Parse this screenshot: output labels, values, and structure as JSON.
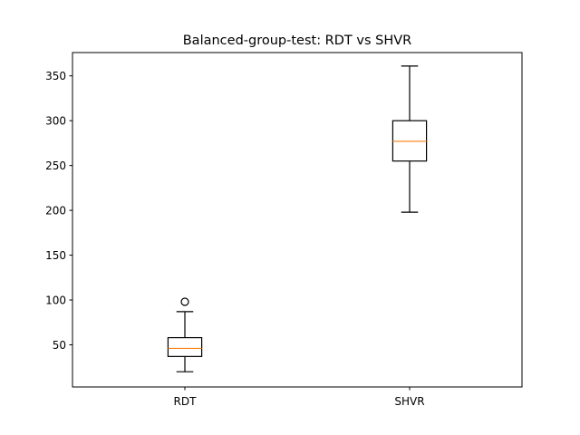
{
  "chart_data": {
    "type": "box",
    "title": "Balanced-group-test: RDT vs SHVR",
    "xlabel": "",
    "ylabel": "",
    "categories": [
      "RDT",
      "SHVR"
    ],
    "boxes": [
      {
        "label": "RDT",
        "whisker_low": 20,
        "q1": 37,
        "median": 46,
        "q3": 58,
        "whisker_high": 87,
        "outliers": [
          98
        ]
      },
      {
        "label": "SHVR",
        "whisker_low": 198,
        "q1": 255,
        "median": 277,
        "q3": 300,
        "whisker_high": 361,
        "outliers": []
      }
    ],
    "ylim": [
      3,
      376
    ],
    "yticks": [
      50,
      100,
      150,
      200,
      250,
      300,
      350
    ],
    "ytick_labels": [
      "50",
      "100",
      "150",
      "200",
      "250",
      "300",
      "350"
    ],
    "grid": false,
    "legend": "none",
    "colors": {
      "box": "#000000",
      "median": "#ff7f0e",
      "outlier": "#000000"
    }
  }
}
